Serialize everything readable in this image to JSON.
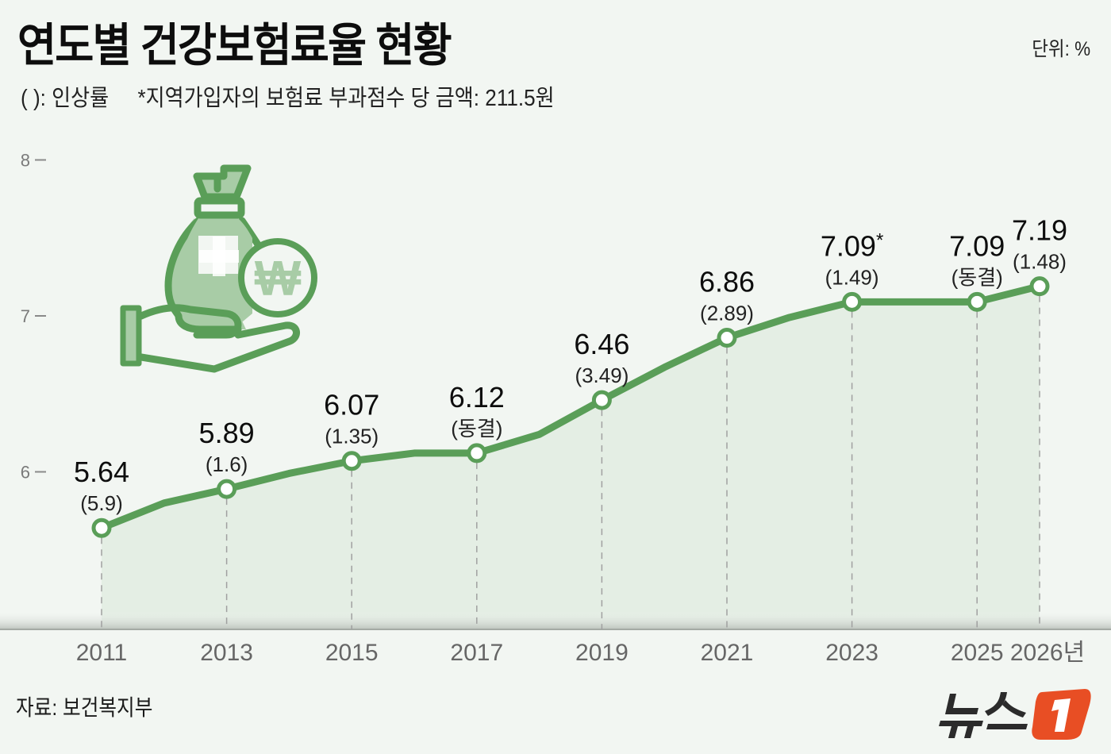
{
  "header": {
    "title": "연도별 건강보험료율 현황",
    "subtitle_legend": "( ): 인상률",
    "subtitle_note": "*지역가입자의 보험료 부과점수 당 금액: 211.5원",
    "unit": "단위: %"
  },
  "footer": {
    "source": "자료: 보건복지부",
    "logo_text": "뉴스",
    "logo_badge": "1"
  },
  "colors": {
    "background": "#f2f6f2",
    "line": "#5a9e58",
    "area_fill": "#e4eee4",
    "icon_light": "#a8cca6",
    "logo_orange": "#e84e24",
    "logo_text": "#2b2b2b"
  },
  "chart_data": {
    "type": "line",
    "title": "연도별 건강보험료율 현황",
    "xlabel": "",
    "ylabel": "단위: %",
    "ylim": [
      5.3,
      8
    ],
    "yticks": [
      6,
      7,
      8
    ],
    "grid": false,
    "legend": null,
    "x_tick_labels": [
      "2011",
      "2013",
      "2015",
      "2017",
      "2019",
      "2021",
      "2023",
      "2025",
      "2026년"
    ],
    "x": [
      2011,
      2012,
      2013,
      2014,
      2015,
      2016,
      2017,
      2018,
      2019,
      2020,
      2021,
      2022,
      2023,
      2024,
      2025,
      2026
    ],
    "series": [
      {
        "name": "건강보험료율",
        "values": [
          5.64,
          5.8,
          5.89,
          5.99,
          6.07,
          6.12,
          6.12,
          6.24,
          6.46,
          6.67,
          6.86,
          6.99,
          7.09,
          7.09,
          7.09,
          7.19
        ]
      }
    ],
    "labeled_points": [
      {
        "year": "2011",
        "value": "5.64",
        "rate": "(5.9)"
      },
      {
        "year": "2013",
        "value": "5.89",
        "rate": "(1.6)"
      },
      {
        "year": "2015",
        "value": "6.07",
        "rate": "(1.35)"
      },
      {
        "year": "2017",
        "value": "6.12",
        "rate": "(동결)"
      },
      {
        "year": "2019",
        "value": "6.46",
        "rate": "(3.49)"
      },
      {
        "year": "2021",
        "value": "6.86",
        "rate": "(2.89)"
      },
      {
        "year": "2023",
        "value": "7.09*",
        "rate": "(1.49)"
      },
      {
        "year": "2025",
        "value": "7.09",
        "rate": "(동결)"
      },
      {
        "year": "2026",
        "value": "7.19",
        "rate": "(1.48)"
      }
    ],
    "annotations": [
      "( ): 인상률",
      "*지역가입자의 보험료 부과점수 당 금액: 211.5원"
    ]
  }
}
